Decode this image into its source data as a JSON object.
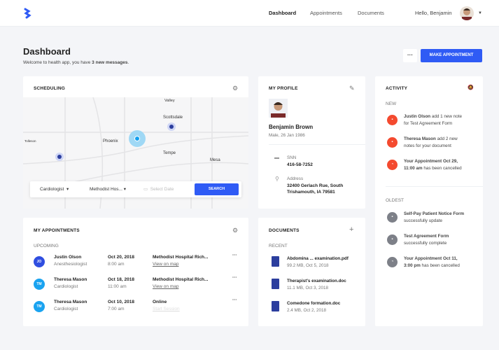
{
  "nav": {
    "items": [
      "Dashboard",
      "Appointments",
      "Documents"
    ],
    "active": "Dashboard",
    "greeting": "Hello, Benjamin"
  },
  "page": {
    "title": "Dashboard",
    "subtitle_pre": "Welcome to health app, you have ",
    "subtitle_bold": "3 new messages",
    "subtitle_post": ".",
    "more": "···",
    "make_appointment": "MAKE APPOINTMENT"
  },
  "scheduling": {
    "title": "SCHEDULING",
    "map_labels": [
      "Valley",
      "Scottsdale",
      "Phoenix",
      "Tempe",
      "Mesa",
      "Tolleson"
    ],
    "specialty": "Cardiologist",
    "hospital": "Methodist Hos...",
    "date_placeholder": "Select Date",
    "search": "SEARCH"
  },
  "profile": {
    "title": "MY PROFILE",
    "name": "Benjamin Brown",
    "details": "Male, 26 Jan 1986",
    "snn_label": "SNN",
    "snn": "416-58-7252",
    "address_label": "Address",
    "address_line1": "32400 Gerlach Rue, South",
    "address_line2": "Trishamouth, IA 79581"
  },
  "activity": {
    "title": "ACTIVITY",
    "new_label": "NEW",
    "oldest_label": "OLDEST",
    "new": [
      {
        "bold": "Justin Olson",
        "text": " add 1 new note",
        "line2": "for Test Agreement Form",
        "icon": "message"
      },
      {
        "bold": "Theresa Mason",
        "text": " add 2 new",
        "line2": "notes for your document",
        "icon": "message"
      },
      {
        "bold": "Your Appointment Oct 29,",
        "text": "",
        "line2b": "11:00 am",
        "line2": " has been cancelled",
        "icon": "clock"
      }
    ],
    "oldest": [
      {
        "bold": "Self-Pay Patient Notice Form",
        "line2": "successfully update",
        "icon": "form"
      },
      {
        "bold": "Test Agreement Form",
        "line2": "successfully complete",
        "icon": "form"
      },
      {
        "bold": "Your Appointment Oct 11,",
        "line2b": "3:00 pm",
        "line2": " has been cancelled",
        "icon": "clock"
      }
    ],
    "colors": {
      "new": "#f44a2f",
      "oldest": "#7d8088"
    }
  },
  "appointments": {
    "title": "MY APPOINTMENTS",
    "section": "UPCOMING",
    "rows": [
      {
        "initials": "JO",
        "color": "#2f4ee0",
        "name": "Justin Olson",
        "role": "Anesthesiologist",
        "date": "Oct 20, 2018",
        "time": "8:00 am",
        "place": "Methodist Hospital Rich...",
        "link": "View on map"
      },
      {
        "initials": "TM",
        "color": "#1aa3f0",
        "name": "Theresa Mason",
        "role": "Cardiologist",
        "date": "Oct 18, 2018",
        "time": "11:00 am",
        "place": "Methodist Hospital Rich...",
        "link": "View on map"
      },
      {
        "initials": "TM",
        "color": "#1aa3f0",
        "name": "Theresa Mason",
        "role": "Cardiologist",
        "date": "Oct 10, 2018",
        "time": "7:00 am",
        "place": "Online",
        "link": "Start Session"
      }
    ]
  },
  "documents": {
    "title": "DOCUMENTS",
    "section": "RECENT",
    "items": [
      {
        "name": "Abdomina ... examination.pdf",
        "meta": "99.2 MB, Oct 5, 2018"
      },
      {
        "name": "Therapist's examination.doc",
        "meta": "11.1 MB, Oct 3, 2018"
      },
      {
        "name": "Comedone formation.doc",
        "meta": "2.4 MB, Oct 2, 2018"
      }
    ]
  }
}
